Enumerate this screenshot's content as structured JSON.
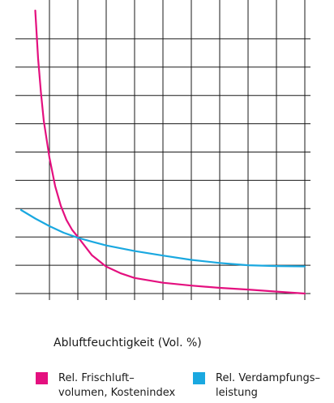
{
  "chart_data": {
    "type": "line",
    "title": "",
    "xlabel": "Abluftfeuchtigkeit (Vol. %)",
    "ylabel": "",
    "xlim": [
      0,
      100
    ],
    "ylim": [
      0,
      10
    ],
    "x_ticks": [
      "0",
      "20",
      "40",
      "60",
      "80",
      "100"
    ],
    "grid": true,
    "legend_position": "bottom",
    "series": [
      {
        "name": "Rel. Frischluft–\nvolumen, Kostenindex",
        "color": "#e4107f",
        "x": [
          5,
          6,
          7,
          8,
          10,
          12,
          14,
          16,
          18,
          20,
          25,
          30,
          35,
          40,
          50,
          60,
          70,
          80,
          90,
          100
        ],
        "y": [
          10,
          8.3,
          7.1,
          6.1,
          4.8,
          3.8,
          3.1,
          2.6,
          2.25,
          2.0,
          1.35,
          0.95,
          0.72,
          0.55,
          0.38,
          0.28,
          0.2,
          0.14,
          0.07,
          0.0
        ]
      },
      {
        "name": "Rel. Verdampfungs–\nleistung",
        "color": "#1aa8e0",
        "x": [
          0,
          5,
          10,
          15,
          20,
          25,
          30,
          40,
          50,
          60,
          70,
          80,
          90,
          100
        ],
        "y": [
          2.95,
          2.65,
          2.38,
          2.15,
          1.97,
          1.83,
          1.7,
          1.5,
          1.34,
          1.19,
          1.08,
          1.0,
          0.97,
          0.96
        ]
      }
    ]
  }
}
